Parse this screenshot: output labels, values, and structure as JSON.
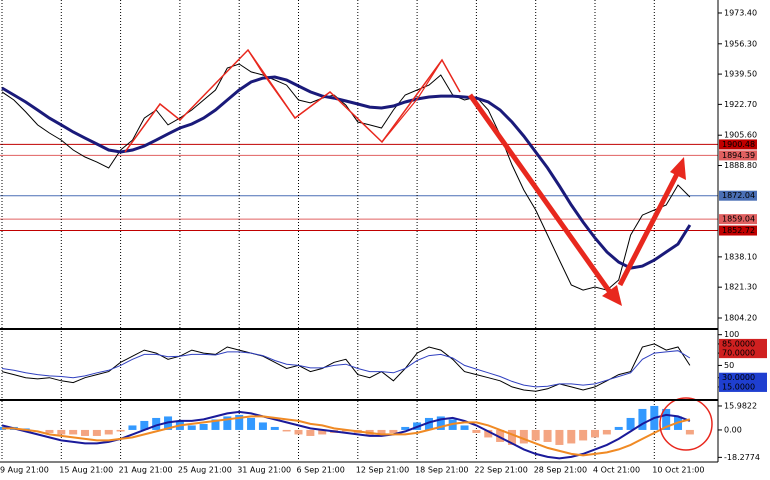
{
  "chart_data": [
    {
      "type": "line",
      "ylim": [
        1798.65,
        1980.6
      ],
      "yticks": [
        {
          "value": 1973.4,
          "label": "1973.40"
        },
        {
          "value": 1956.3,
          "label": "1956.30"
        },
        {
          "value": 1939.5,
          "label": "1939.50"
        },
        {
          "value": 1922.7,
          "label": "1922.70"
        },
        {
          "value": 1905.6,
          "label": "1905.60"
        },
        {
          "value": 1888.8,
          "label": "1888.80"
        },
        {
          "value": 1838.1,
          "label": "1838.10"
        },
        {
          "value": 1821.3,
          "label": "1821.30"
        },
        {
          "value": 1804.2,
          "label": "1804.20"
        }
      ],
      "levels": [
        {
          "value": 1900.48,
          "color": "#c00000"
        },
        {
          "value": 1894.39,
          "color": "#e06060"
        },
        {
          "value": 1872.04,
          "color": "#4a6fb5"
        },
        {
          "value": 1859.04,
          "color": "#e06060"
        },
        {
          "value": 1852.72,
          "color": "#c00000"
        }
      ],
      "series": [
        {
          "color": "#000000",
          "width": 1,
          "values": [
            1929.6,
            1925.1,
            1918.5,
            1911.3,
            1906.8,
            1902.9,
            1897.4,
            1893.5,
            1890.7,
            1887.4,
            1897.4,
            1902.9,
            1915.1,
            1919.6,
            1911.3,
            1915.1,
            1919.6,
            1925.1,
            1930.7,
            1942.9,
            1945.1,
            1940.7,
            1939.0,
            1936.2,
            1933.4,
            1925.1,
            1923.5,
            1926.2,
            1927.9,
            1922.3,
            1912.9,
            1911.3,
            1909.6,
            1919.6,
            1927.9,
            1930.7,
            1933.4,
            1939.0,
            1927.9,
            1925.1,
            1926.8,
            1919.6,
            1905.7,
            1889.1,
            1875.2,
            1864.1,
            1850.2,
            1836.3,
            1822.5,
            1819.7,
            1821.4,
            1819.7,
            1825.3,
            1850.2,
            1861.3,
            1864.1,
            1866.9,
            1878.0,
            1871.3
          ]
        },
        {
          "color": "#1a1a7a",
          "width": 3,
          "values": [
            1931.8,
            1927.9,
            1924.0,
            1919.6,
            1915.1,
            1911.3,
            1907.4,
            1904.0,
            1900.7,
            1897.4,
            1896.3,
            1897.4,
            1899.6,
            1902.9,
            1906.3,
            1909.6,
            1911.8,
            1915.1,
            1919.6,
            1925.1,
            1930.7,
            1935.1,
            1937.3,
            1937.9,
            1936.2,
            1932.9,
            1929.6,
            1927.3,
            1926.2,
            1924.6,
            1922.9,
            1921.2,
            1920.7,
            1921.8,
            1924.0,
            1925.7,
            1926.8,
            1927.3,
            1927.3,
            1926.8,
            1926.2,
            1924.0,
            1919.6,
            1912.9,
            1905.1,
            1896.3,
            1887.4,
            1877.4,
            1866.9,
            1857.4,
            1848.6,
            1840.8,
            1835.2,
            1831.9,
            1833.0,
            1836.3,
            1840.8,
            1845.2,
            1855.8
          ]
        }
      ]
    },
    {
      "type": "line",
      "ylim": [
        -3,
        106
      ],
      "yticks": [
        100,
        {
          "value": 85,
          "label": "85.0000",
          "color": "#d02020"
        },
        {
          "value": 70,
          "label": "70.0000",
          "color": "#d02020"
        },
        50,
        {
          "value": 30,
          "label": "30.0000",
          "color": "#1f3fd0"
        },
        {
          "value": 15,
          "label": "15.0000",
          "color": "#1f3fd0"
        }
      ],
      "series": [
        {
          "color": "#000000",
          "width": 1,
          "values": [
            40,
            35,
            30,
            28,
            30,
            25,
            22,
            30,
            35,
            40,
            55,
            65,
            75,
            70,
            60,
            65,
            75,
            70,
            68,
            80,
            75,
            70,
            65,
            55,
            45,
            50,
            40,
            45,
            55,
            60,
            35,
            30,
            40,
            25,
            45,
            70,
            80,
            75,
            60,
            40,
            35,
            30,
            25,
            15,
            10,
            8,
            12,
            20,
            15,
            10,
            15,
            25,
            35,
            40,
            80,
            85,
            75,
            80,
            50
          ]
        },
        {
          "color": "#3040c0",
          "width": 1,
          "values": [
            45,
            42,
            38,
            35,
            33,
            32,
            30,
            33,
            38,
            42,
            50,
            60,
            68,
            68,
            64,
            65,
            68,
            68,
            67,
            72,
            72,
            70,
            66,
            58,
            52,
            50,
            46,
            46,
            50,
            52,
            45,
            40,
            40,
            38,
            45,
            58,
            66,
            68,
            62,
            50,
            44,
            38,
            32,
            24,
            18,
            15,
            16,
            20,
            20,
            18,
            20,
            26,
            32,
            38,
            60,
            70,
            72,
            74,
            62
          ]
        }
      ]
    },
    {
      "type": "macd",
      "categories": [
        "9 Aug 21:00",
        null,
        null,
        null,
        null,
        "15 Aug 21:00",
        null,
        null,
        null,
        null,
        "21 Aug 21:00",
        null,
        null,
        null,
        null,
        "25 Aug 21:00",
        null,
        null,
        null,
        null,
        "31 Aug 21:00",
        null,
        null,
        null,
        null,
        "6 Sep 21:00",
        null,
        null,
        null,
        null,
        "12 Sep 21:00",
        null,
        null,
        null,
        null,
        "18 Sep 21:00",
        null,
        null,
        null,
        null,
        "22 Sep 21:00",
        null,
        null,
        null,
        null,
        "28 Sep 21:00",
        null,
        null,
        null,
        null,
        "4 Oct 21:00",
        null,
        null,
        null,
        null,
        "10 Oct 21:00",
        null,
        null,
        null
      ],
      "ylim": [
        -20.7,
        19.3
      ],
      "yticks": [
        15.9822,
        {
          "value": 0,
          "label": "0.00"
        },
        -18.2774
      ],
      "grid": true,
      "series": [
        {
          "kind": "bars",
          "color": "#3399ff",
          "negative_color": "#f4a582",
          "values": [
            2,
            2,
            1,
            0,
            -2,
            -3,
            -3,
            -4,
            -4,
            -3,
            -1,
            3,
            6,
            8,
            9,
            6,
            3,
            4,
            7,
            9,
            10,
            8,
            5,
            2,
            -1,
            -3,
            -4,
            -3,
            -2,
            -1,
            -2,
            -4,
            -4,
            -2,
            2,
            5,
            8,
            9,
            7,
            3,
            -2,
            -5,
            -8,
            -10,
            -9,
            -7,
            -8,
            -10,
            -9,
            -7,
            -5,
            -3,
            2,
            8,
            14,
            16,
            14,
            9,
            -3
          ]
        },
        {
          "kind": "line",
          "color": "#1a1a9a",
          "width": 2,
          "values": [
            3,
            1,
            -1,
            -3,
            -5,
            -7,
            -8,
            -9,
            -9,
            -8,
            -6,
            -3,
            0,
            3,
            5,
            6,
            6,
            7,
            9,
            11,
            12,
            11,
            9,
            7,
            5,
            3,
            1,
            0,
            -1,
            -2,
            -3,
            -4,
            -4,
            -3,
            -1,
            2,
            5,
            7,
            8,
            6,
            3,
            -1,
            -5,
            -9,
            -13,
            -16,
            -18,
            -19,
            -18,
            -16,
            -13,
            -10,
            -6,
            -1,
            4,
            8,
            10,
            9,
            6
          ]
        },
        {
          "kind": "line",
          "color": "#f08a24",
          "width": 2,
          "values": [
            1,
            1,
            0,
            -1,
            -3,
            -4,
            -5,
            -6,
            -7,
            -7,
            -6,
            -5,
            -3,
            -1,
            1,
            3,
            4,
            5,
            6,
            7,
            8,
            9,
            9,
            8,
            7,
            6,
            4,
            3,
            1,
            0,
            -1,
            -2,
            -3,
            -3,
            -3,
            -2,
            0,
            2,
            4,
            5,
            5,
            3,
            0,
            -3,
            -6,
            -9,
            -12,
            -14,
            -16,
            -17,
            -16,
            -15,
            -13,
            -10,
            -6,
            -2,
            2,
            5,
            7
          ]
        }
      ]
    }
  ]
}
